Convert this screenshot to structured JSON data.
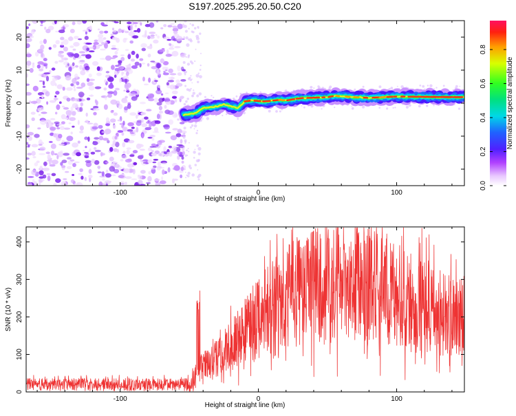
{
  "title": "S197.2025.295.20.50.C20",
  "chart_data": [
    {
      "id": "spectrogram",
      "type": "heatmap",
      "xlabel": "Height of straight line (km)",
      "ylabel": "Frequency (Hz)",
      "xlim": [
        -168,
        149
      ],
      "ylim": [
        -25,
        25
      ],
      "xticks": [
        -100,
        0,
        100
      ],
      "yticks": [
        -20,
        -10,
        0,
        10,
        20
      ],
      "colorbar": {
        "label": "Normalized spectral amplitude",
        "range": [
          0,
          0.97
        ],
        "ticks": [
          "0.0",
          "0.2",
          "0.4",
          "0.6",
          "0.8"
        ]
      },
      "noise_region_x": [
        -168,
        -54
      ],
      "signal_ridge": [
        {
          "x": -54,
          "y": -3.5
        },
        {
          "x": -45,
          "y": -3.0
        },
        {
          "x": -40,
          "y": -1.5
        },
        {
          "x": -30,
          "y": -1.0
        },
        {
          "x": -25,
          "y": -0.3
        },
        {
          "x": -15,
          "y": -1.5
        },
        {
          "x": -10,
          "y": 0.5
        },
        {
          "x": -5,
          "y": 0.8
        },
        {
          "x": 5,
          "y": 0.5
        },
        {
          "x": 15,
          "y": 1.0
        },
        {
          "x": 20,
          "y": 0.8
        },
        {
          "x": 30,
          "y": 1.5
        },
        {
          "x": 50,
          "y": 1.8
        },
        {
          "x": 55,
          "y": 2.2
        },
        {
          "x": 70,
          "y": 1.8
        },
        {
          "x": 80,
          "y": 1.6
        },
        {
          "x": 100,
          "y": 2.0
        },
        {
          "x": 149,
          "y": 1.8
        }
      ]
    },
    {
      "id": "snr",
      "type": "line",
      "xlabel": "Height of straight line (km)",
      "ylabel": "SNR (10 * v/v)",
      "xlim": [
        -168,
        149
      ],
      "ylim": [
        0,
        440
      ],
      "xticks": [
        -100,
        0,
        100
      ],
      "yticks": [
        0,
        100,
        200,
        300,
        400
      ],
      "color": "#ee3333",
      "envelope": [
        {
          "x": -168,
          "y": 20
        },
        {
          "x": -50,
          "y": 20
        },
        {
          "x": -44,
          "y": 60
        },
        {
          "x": -30,
          "y": 90
        },
        {
          "x": -15,
          "y": 140
        },
        {
          "x": 0,
          "y": 200
        },
        {
          "x": 15,
          "y": 240
        },
        {
          "x": 30,
          "y": 270
        },
        {
          "x": 50,
          "y": 290
        },
        {
          "x": 70,
          "y": 295
        },
        {
          "x": 90,
          "y": 270
        },
        {
          "x": 110,
          "y": 245
        },
        {
          "x": 130,
          "y": 215
        },
        {
          "x": 149,
          "y": 185
        }
      ]
    }
  ]
}
